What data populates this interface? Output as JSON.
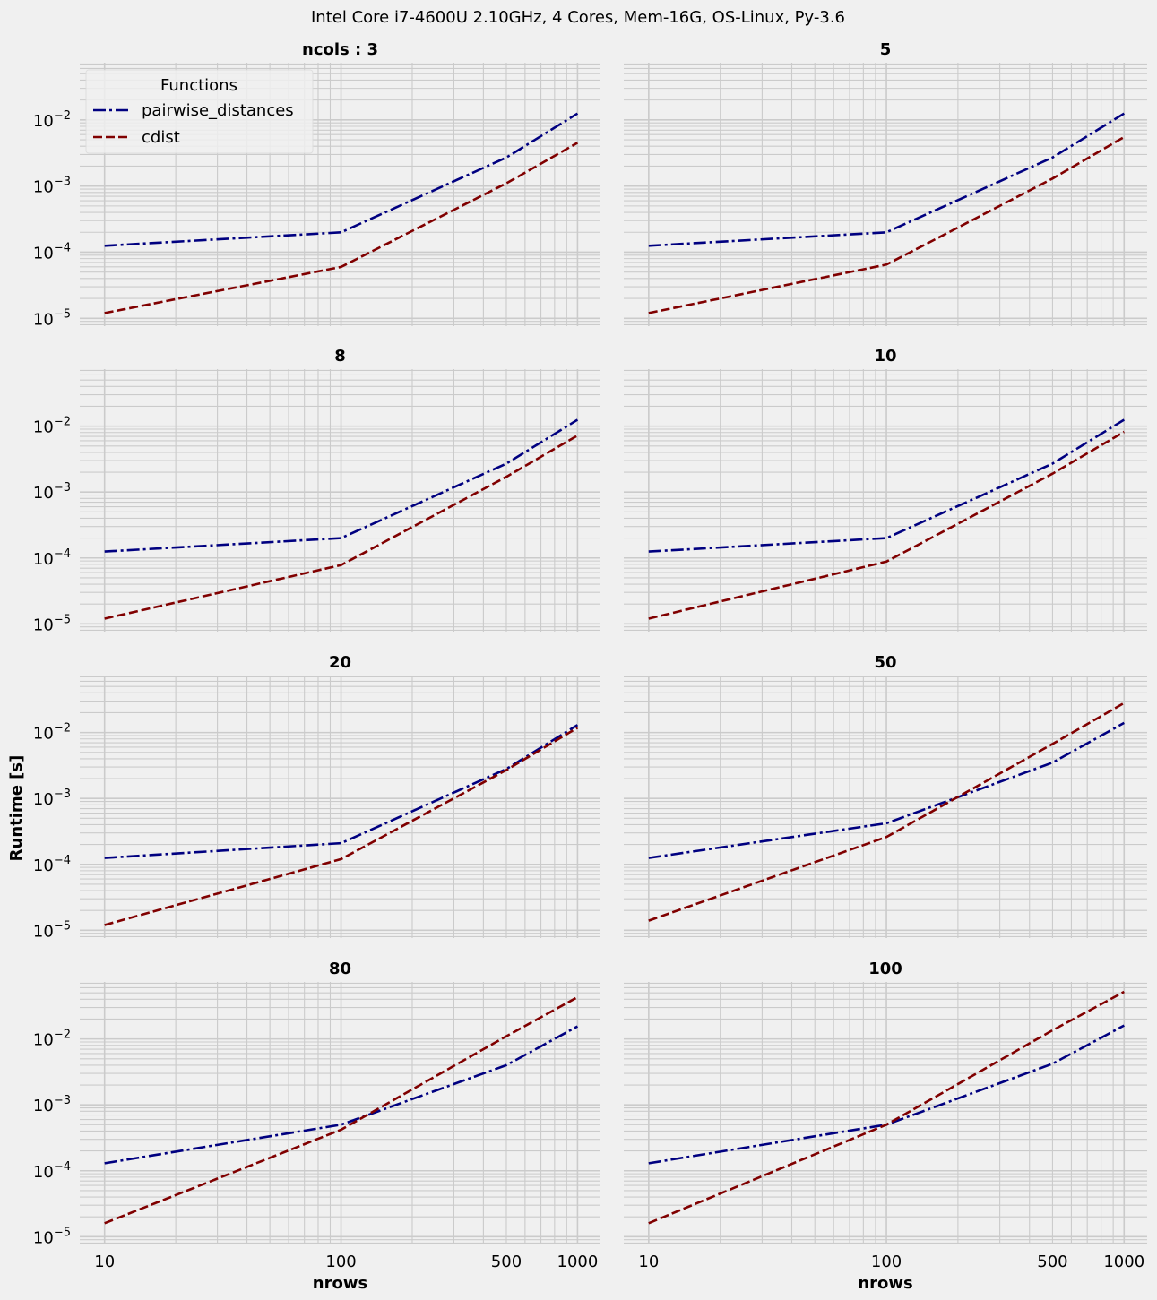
{
  "figure": {
    "suptitle": "Intel Core i7-4600U 2.10GHz, 4 Cores, Mem-16G, OS-Linux, Py-3.6",
    "ylabel": "Runtime [s]",
    "xlabel": "nrows"
  },
  "legend": {
    "title": "Functions",
    "entries": [
      {
        "label": "pairwise_distances",
        "color": "#000080",
        "style": "dashdot"
      },
      {
        "label": "cdist",
        "color": "#800000",
        "style": "dashed"
      }
    ],
    "placement": "upper-left of first panel"
  },
  "colors": {
    "background": "#f0f0f0",
    "grid": "#cbcbcb",
    "pairwise_distances": "#000080",
    "cdist": "#800000"
  },
  "chart_data": {
    "type": "line",
    "xscale": "log",
    "yscale": "log",
    "grid": "major and minor",
    "x": [
      10,
      100,
      500,
      1000
    ],
    "xticks": [
      {
        "v": 10,
        "label": "10"
      },
      {
        "v": 100,
        "label": "100"
      },
      {
        "v": 500,
        "label": "500"
      },
      {
        "v": 1000,
        "label": "1000"
      }
    ],
    "yticks": [
      {
        "exp": -5,
        "base": "10",
        "sup": "−5"
      },
      {
        "exp": -4,
        "base": "10",
        "sup": "−4"
      },
      {
        "exp": -3,
        "base": "10",
        "sup": "−3"
      },
      {
        "exp": -2,
        "base": "10",
        "sup": "−2"
      }
    ],
    "xlim_log10": [
      0.895,
      3.097
    ],
    "ylim_log10": [
      -5.118,
      -1.135
    ],
    "panels": [
      {
        "title": "ncols : 3",
        "series": [
          {
            "name": "pairwise_distances",
            "values": [
              0.000125,
              0.0002,
              0.0027,
              0.0125
            ]
          },
          {
            "name": "cdist",
            "values": [
              1.2e-05,
              6e-05,
              0.0011,
              0.0045
            ]
          }
        ]
      },
      {
        "title": "5",
        "series": [
          {
            "name": "pairwise_distances",
            "values": [
              0.000125,
              0.0002,
              0.0027,
              0.0125
            ]
          },
          {
            "name": "cdist",
            "values": [
              1.2e-05,
              6.5e-05,
              0.0013,
              0.0055
            ]
          }
        ]
      },
      {
        "title": "8",
        "series": [
          {
            "name": "pairwise_distances",
            "values": [
              0.000125,
              0.0002,
              0.0027,
              0.0125
            ]
          },
          {
            "name": "cdist",
            "values": [
              1.2e-05,
              7.8e-05,
              0.0017,
              0.0072
            ]
          }
        ]
      },
      {
        "title": "10",
        "series": [
          {
            "name": "pairwise_distances",
            "values": [
              0.000125,
              0.0002,
              0.0027,
              0.0125
            ]
          },
          {
            "name": "cdist",
            "values": [
              1.2e-05,
              8.8e-05,
              0.0019,
              0.0082
            ]
          }
        ]
      },
      {
        "title": "20",
        "series": [
          {
            "name": "pairwise_distances",
            "values": [
              0.000125,
              0.00021,
              0.0028,
              0.013
            ]
          },
          {
            "name": "cdist",
            "values": [
              1.2e-05,
              0.00012,
              0.0027,
              0.0118
            ]
          }
        ]
      },
      {
        "title": "50",
        "series": [
          {
            "name": "pairwise_distances",
            "values": [
              0.000125,
              0.00042,
              0.0035,
              0.014
            ]
          },
          {
            "name": "cdist",
            "values": [
              1.4e-05,
              0.00026,
              0.0067,
              0.028
            ]
          }
        ]
      },
      {
        "title": "80",
        "series": [
          {
            "name": "pairwise_distances",
            "values": [
              0.00013,
              0.0005,
              0.004,
              0.0155
            ]
          },
          {
            "name": "cdist",
            "values": [
              1.6e-05,
              0.00042,
              0.011,
              0.043
            ]
          }
        ]
      },
      {
        "title": "100",
        "series": [
          {
            "name": "pairwise_distances",
            "values": [
              0.00013,
              0.0005,
              0.0042,
              0.016
            ]
          },
          {
            "name": "cdist",
            "values": [
              1.6e-05,
              0.0005,
              0.0135,
              0.052
            ]
          }
        ]
      }
    ]
  }
}
